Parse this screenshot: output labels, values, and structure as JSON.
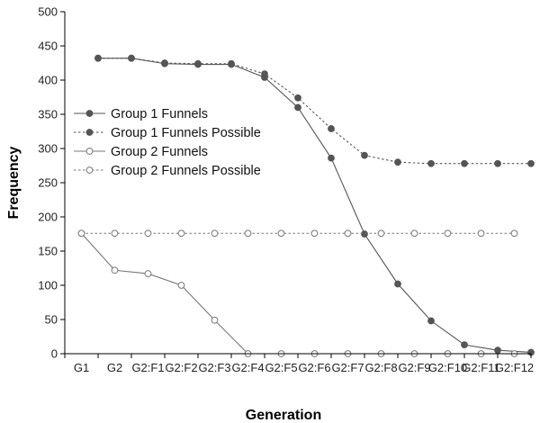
{
  "chart_data": {
    "type": "line",
    "title": "",
    "xlabel": "Generation",
    "ylabel": "Frequency",
    "ylim": [
      0,
      500
    ],
    "yticks": [
      0,
      50,
      100,
      150,
      200,
      250,
      300,
      350,
      400,
      450,
      500
    ],
    "categories": [
      "G1",
      "G2",
      "G2:F1",
      "G2:F2",
      "G2:F3",
      "G2:F4",
      "G2:F5",
      "G2:F6",
      "G2:F7",
      "G2:F8",
      "G2:F9",
      "G2:F10",
      "G2:F11",
      "G2:F12"
    ],
    "grid": false,
    "legend_position": "left-middle",
    "series": [
      {
        "name": "Group 1 Funnels",
        "line": "solid",
        "marker": "filled-circle",
        "color": "#555555",
        "x": [
          1,
          2,
          3,
          4,
          5,
          6,
          7,
          8,
          9,
          10,
          11,
          12,
          13,
          14
        ],
        "values": [
          432,
          432,
          424,
          423,
          423,
          404,
          360,
          286,
          175,
          102,
          48,
          13,
          5,
          2
        ]
      },
      {
        "name": "Group 1 Funnels Possible",
        "line": "dotted",
        "marker": "filled-circle",
        "color": "#555555",
        "x": [
          1,
          2,
          3,
          4,
          5,
          6,
          7,
          8,
          9,
          10,
          11,
          12,
          13,
          14
        ],
        "values": [
          432,
          432,
          425,
          424,
          424,
          409,
          374,
          329,
          290,
          280,
          278,
          278,
          278,
          278
        ]
      },
      {
        "name": "Group 2 Funnels",
        "line": "solid",
        "marker": "open-circle",
        "color": "#777777",
        "x": [
          0.5,
          1.5,
          2.5,
          3.5,
          4.5,
          5.5,
          6.5,
          7.5,
          8.5,
          9.5,
          10.5,
          11.5,
          12.5,
          13.5
        ],
        "values": [
          176,
          122,
          117,
          100,
          49,
          0,
          0,
          0,
          0,
          0,
          0,
          0,
          0,
          0
        ]
      },
      {
        "name": "Group 2 Funnels Possible",
        "line": "dotted",
        "marker": "open-circle",
        "color": "#777777",
        "x": [
          0.5,
          1.5,
          2.5,
          3.5,
          4.5,
          5.5,
          6.5,
          7.5,
          8.5,
          9.5,
          10.5,
          11.5,
          12.5,
          13.5
        ],
        "values": [
          176,
          176,
          176,
          176,
          176,
          176,
          176,
          176,
          176,
          176,
          176,
          176,
          176,
          176
        ]
      }
    ]
  }
}
